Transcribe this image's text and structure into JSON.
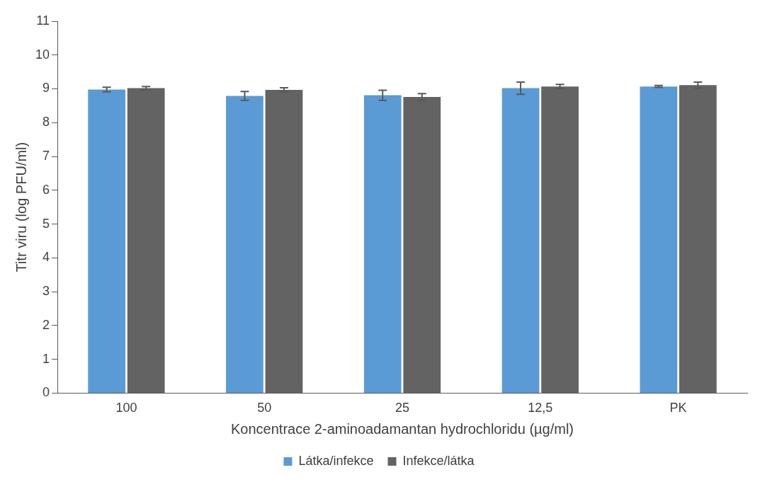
{
  "chart_data": {
    "type": "bar",
    "xlabel": "Koncentrace 2-aminoadamantan hydrochloridu (µg/ml)",
    "ylabel": "Titr viru (log PFU/ml)",
    "categories": [
      "100",
      "50",
      "25",
      "12,5",
      "PK"
    ],
    "series": [
      {
        "name": "Látka/infekce",
        "color": "#5b9bd5",
        "values": [
          8.98,
          8.79,
          8.81,
          9.02,
          9.07
        ],
        "errors": [
          0.07,
          0.13,
          0.15,
          0.18,
          0.03
        ]
      },
      {
        "name": "Infekce/látka",
        "color": "#636363",
        "values": [
          9.02,
          8.97,
          8.76,
          9.07,
          9.11
        ],
        "errors": [
          0.05,
          0.06,
          0.1,
          0.06,
          0.09
        ]
      }
    ],
    "ylim": [
      0,
      11
    ],
    "yticks": [
      0,
      1,
      2,
      3,
      4,
      5,
      6,
      7,
      8,
      9,
      10,
      11
    ],
    "grid": false,
    "legend": "bottom"
  }
}
